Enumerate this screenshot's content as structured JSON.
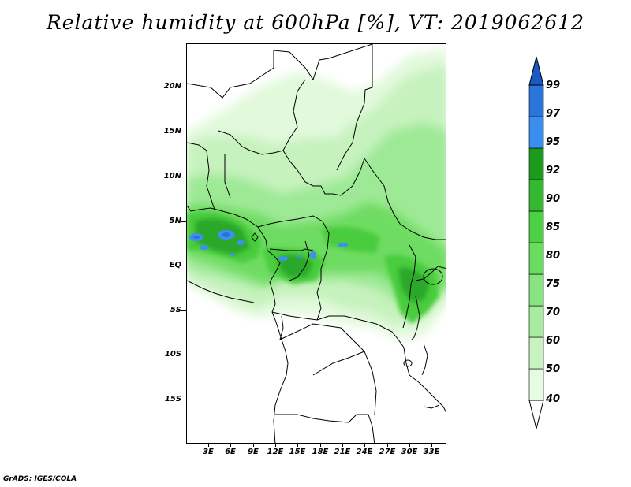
{
  "title": "Relative humidity at 600hPa [%], VT: 2019062612",
  "credit": "GrADS: IGES/COLA",
  "lat_labels": [
    "20N",
    "15N",
    "10N",
    "5N",
    "EQ",
    "5S",
    "10S",
    "15S"
  ],
  "lon_labels": [
    "3E",
    "6E",
    "9E",
    "12E",
    "15E",
    "18E",
    "21E",
    "24E",
    "27E",
    "30E",
    "33E"
  ],
  "colorbar": {
    "labels": [
      "40",
      "50",
      "60",
      "70",
      "75",
      "80",
      "85",
      "90",
      "92",
      "95",
      "97",
      "99"
    ],
    "colors": [
      "#ffffff",
      "#e6fbe2",
      "#c8f3c0",
      "#a8eca0",
      "#88e480",
      "#6adc60",
      "#4cd044",
      "#34b830",
      "#1c9a1c",
      "#3a8ef0",
      "#2a74dc",
      "#1a58c4"
    ]
  }
}
